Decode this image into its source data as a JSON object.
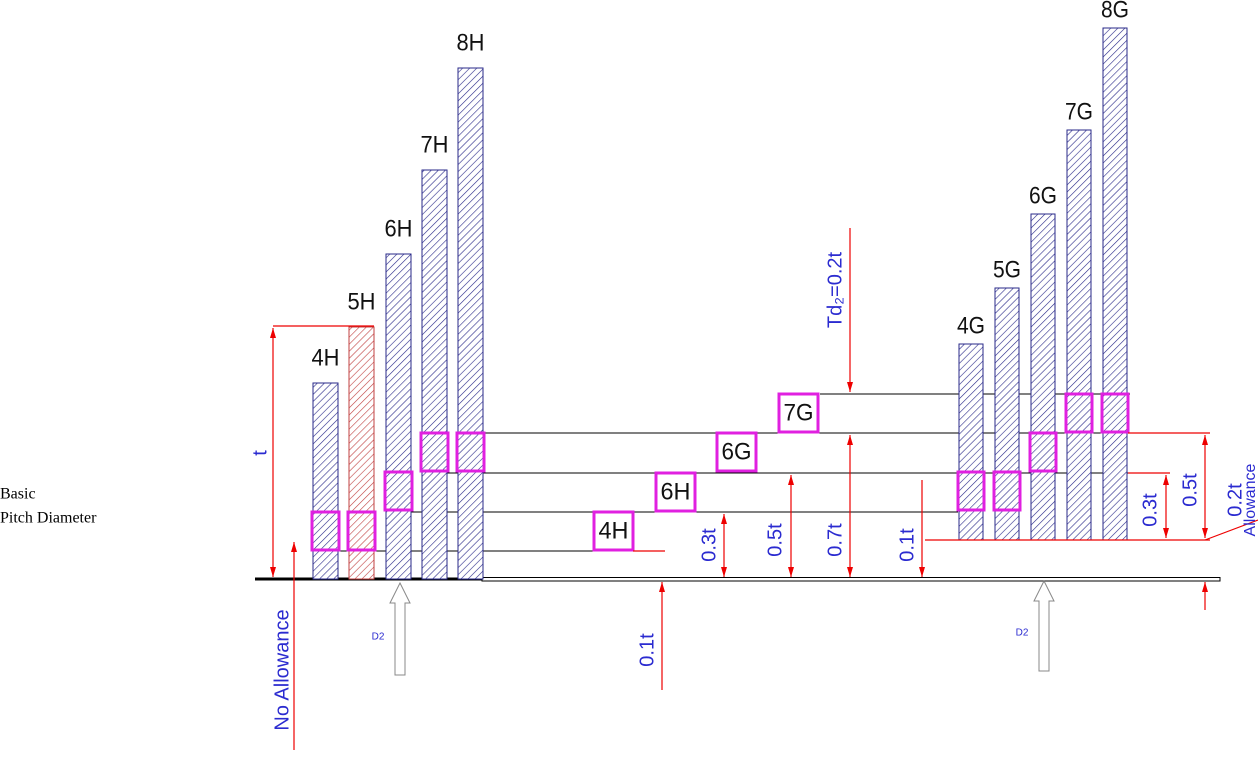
{
  "left_label": [
    "Basic",
    "Pitch Diameter"
  ],
  "left_bars": [
    "4H",
    "5H",
    "6H",
    "7H",
    "8H"
  ],
  "right_bars": [
    "4G",
    "5G",
    "6G",
    "7G",
    "8G"
  ],
  "tolerance_boxes": [
    "4H",
    "6H",
    "6G",
    "7G"
  ],
  "dimensions": {
    "t": "t",
    "td2": "Td₂=0.2t",
    "no_allowance": "No Allowance",
    "d2_left": "D2",
    "d2_right": "D2",
    "h_01": "0.1t",
    "h_03": "0.3t",
    "h_05": "0.5t",
    "h_07": "0.7t",
    "g_01": "0.1t",
    "g_03": "0.3t",
    "g_05": "0.5t",
    "allowance": "0.2t",
    "allowance_label": "Allowance"
  }
}
